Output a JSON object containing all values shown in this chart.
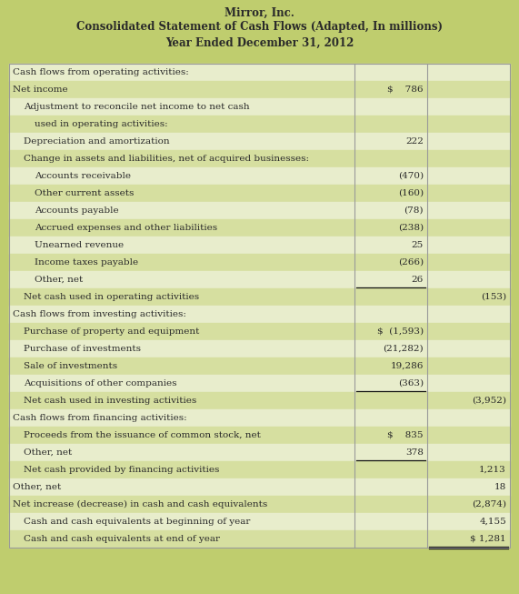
{
  "title_lines": [
    "Mirror, Inc.",
    "Consolidated Statement of Cash Flows (Adapted, In millions)",
    "Year Ended December 31, 2012"
  ],
  "header_bg": "#bfcd6e",
  "row_bg_dark": "#d6dfa0",
  "row_bg_light": "#e8edcc",
  "border_color": "#999999",
  "text_color": "#2a2a2a",
  "rows": [
    {
      "label": "Cash flows from operating activities:",
      "col1": "",
      "col2": "",
      "indent": 0,
      "underline_col1": false,
      "underline_col2": false,
      "box_col2": false
    },
    {
      "label": "Net income",
      "col1": "$    786",
      "col2": "",
      "indent": 0,
      "underline_col1": false,
      "underline_col2": false,
      "box_col2": false
    },
    {
      "label": "Adjustment to reconcile net income to net cash",
      "col1": "",
      "col2": "",
      "indent": 1,
      "underline_col1": false,
      "underline_col2": false,
      "box_col2": false
    },
    {
      "label": "used in operating activities:",
      "col1": "",
      "col2": "",
      "indent": 2,
      "underline_col1": false,
      "underline_col2": false,
      "box_col2": false
    },
    {
      "label": "Depreciation and amortization",
      "col1": "222",
      "col2": "",
      "indent": 1,
      "underline_col1": false,
      "underline_col2": false,
      "box_col2": false
    },
    {
      "label": "Change in assets and liabilities, net of acquired businesses:",
      "col1": "",
      "col2": "",
      "indent": 1,
      "underline_col1": false,
      "underline_col2": false,
      "box_col2": false
    },
    {
      "label": "Accounts receivable",
      "col1": "(470)",
      "col2": "",
      "indent": 2,
      "underline_col1": false,
      "underline_col2": false,
      "box_col2": false
    },
    {
      "label": "Other current assets",
      "col1": "(160)",
      "col2": "",
      "indent": 2,
      "underline_col1": false,
      "underline_col2": false,
      "box_col2": false
    },
    {
      "label": "Accounts payable",
      "col1": "(78)",
      "col2": "",
      "indent": 2,
      "underline_col1": false,
      "underline_col2": false,
      "box_col2": false
    },
    {
      "label": "Accrued expenses and other liabilities",
      "col1": "(238)",
      "col2": "",
      "indent": 2,
      "underline_col1": false,
      "underline_col2": false,
      "box_col2": false
    },
    {
      "label": "Unearned revenue",
      "col1": "25",
      "col2": "",
      "indent": 2,
      "underline_col1": false,
      "underline_col2": false,
      "box_col2": false
    },
    {
      "label": "Income taxes payable",
      "col1": "(266)",
      "col2": "",
      "indent": 2,
      "underline_col1": false,
      "underline_col2": false,
      "box_col2": false
    },
    {
      "label": "Other, net",
      "col1": "26",
      "col2": "",
      "indent": 2,
      "underline_col1": true,
      "underline_col2": false,
      "box_col2": false
    },
    {
      "label": "Net cash used in operating activities",
      "col1": "",
      "col2": "(153)",
      "indent": 1,
      "underline_col1": false,
      "underline_col2": false,
      "box_col2": false
    },
    {
      "label": "Cash flows from investing activities:",
      "col1": "",
      "col2": "",
      "indent": 0,
      "underline_col1": false,
      "underline_col2": false,
      "box_col2": false
    },
    {
      "label": "Purchase of property and equipment",
      "col1": "$  (1,593)",
      "col2": "",
      "indent": 1,
      "underline_col1": false,
      "underline_col2": false,
      "box_col2": false
    },
    {
      "label": "Purchase of investments",
      "col1": "(21,282)",
      "col2": "",
      "indent": 1,
      "underline_col1": false,
      "underline_col2": false,
      "box_col2": false
    },
    {
      "label": "Sale of investments",
      "col1": "19,286",
      "col2": "",
      "indent": 1,
      "underline_col1": false,
      "underline_col2": false,
      "box_col2": false
    },
    {
      "label": "Acquisitions of other companies",
      "col1": "(363)",
      "col2": "",
      "indent": 1,
      "underline_col1": true,
      "underline_col2": false,
      "box_col2": false
    },
    {
      "label": "Net cash used in investing activities",
      "col1": "",
      "col2": "(3,952)",
      "indent": 1,
      "underline_col1": false,
      "underline_col2": false,
      "box_col2": false
    },
    {
      "label": "Cash flows from financing activities:",
      "col1": "",
      "col2": "",
      "indent": 0,
      "underline_col1": false,
      "underline_col2": false,
      "box_col2": false
    },
    {
      "label": "Proceeds from the issuance of common stock, net",
      "col1": "$    835",
      "col2": "",
      "indent": 1,
      "underline_col1": false,
      "underline_col2": false,
      "box_col2": false
    },
    {
      "label": "Other, net",
      "col1": "378",
      "col2": "",
      "indent": 1,
      "underline_col1": true,
      "underline_col2": false,
      "box_col2": false
    },
    {
      "label": "Net cash provided by financing activities",
      "col1": "",
      "col2": "1,213",
      "indent": 1,
      "underline_col1": false,
      "underline_col2": false,
      "box_col2": false
    },
    {
      "label": "Other, net",
      "col1": "",
      "col2": "18",
      "indent": 0,
      "underline_col1": false,
      "underline_col2": false,
      "box_col2": false
    },
    {
      "label": "Net increase (decrease) in cash and cash equivalents",
      "col1": "",
      "col2": "(2,874)",
      "indent": 0,
      "underline_col1": false,
      "underline_col2": false,
      "box_col2": false
    },
    {
      "label": "Cash and cash equivalents at beginning of year",
      "col1": "",
      "col2": "4,155",
      "indent": 1,
      "underline_col1": false,
      "underline_col2": false,
      "box_col2": false
    },
    {
      "label": "Cash and cash equivalents at end of year",
      "col1": "",
      "col2": "$ 1,281",
      "indent": 1,
      "underline_col1": false,
      "underline_col2": true,
      "box_col2": true
    }
  ]
}
